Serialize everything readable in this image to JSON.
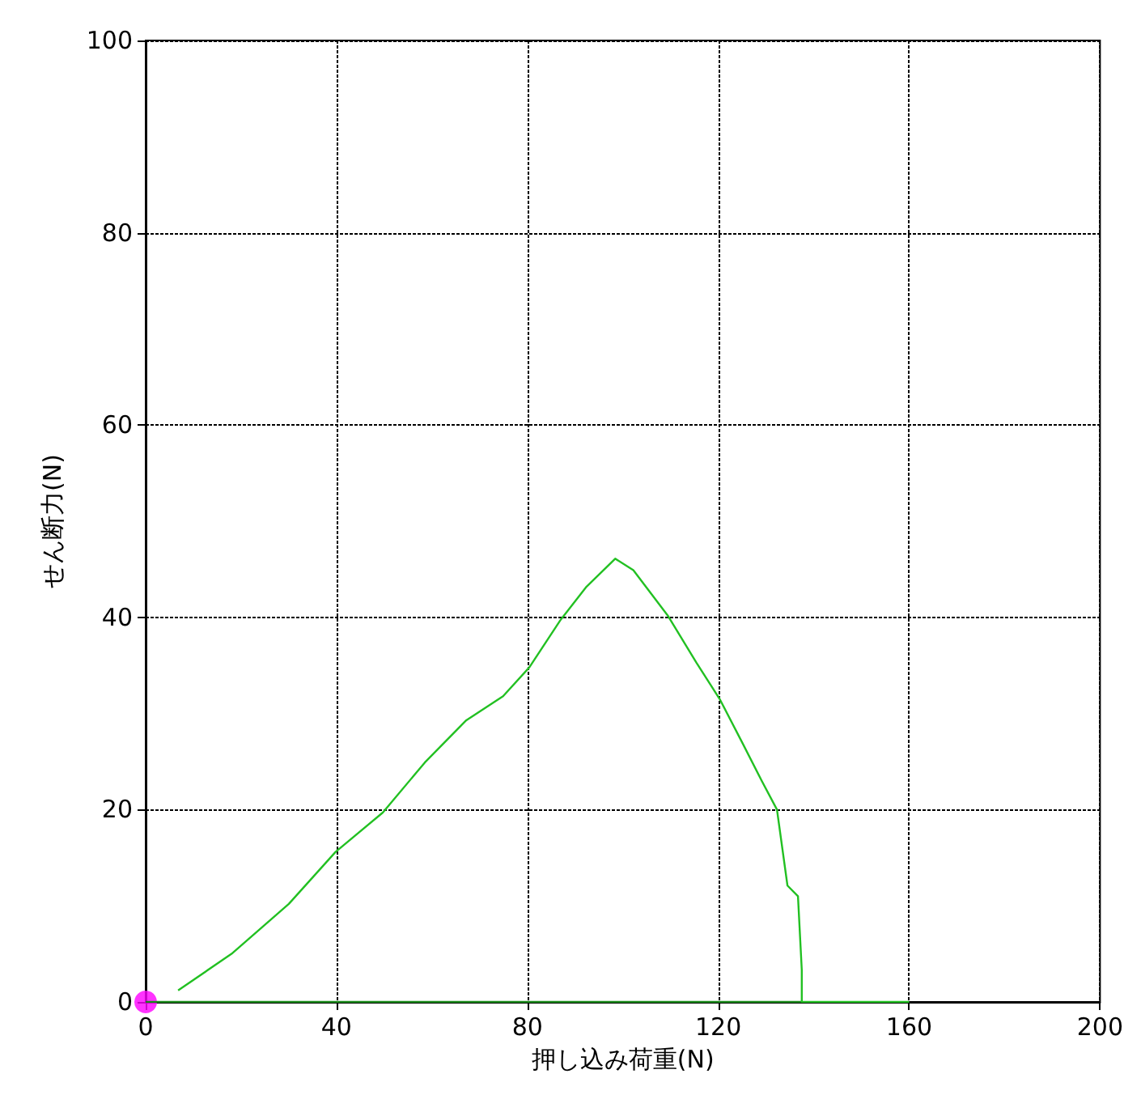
{
  "chart_data": {
    "type": "line",
    "xlabel": "押し込み荷重(N)",
    "ylabel": "せん断力(N)",
    "xlim": [
      0,
      200
    ],
    "xticks": [
      0,
      40,
      80,
      120,
      160,
      200
    ],
    "ylim": [
      0,
      100
    ],
    "yticks": [
      0,
      20,
      40,
      60,
      80,
      100
    ],
    "grid": true,
    "marker": "none",
    "line_style": "solid",
    "series": [
      {
        "color": "#1a8a1a",
        "x": [
          0,
          137.5
        ],
        "values": [
          0,
          0
        ]
      },
      {
        "color": "#22c022",
        "x": [
          6.8,
          18.0,
          30.0,
          39.8,
          49.7,
          58.5,
          67.2,
          74.9,
          80.4,
          86.9,
          92.4,
          98.4,
          102.2,
          109.4,
          115.4,
          120.3,
          125.2,
          129.1,
          132.3,
          134.5,
          136.7,
          137.5,
          137.5,
          160
        ],
        "values": [
          1.2,
          5.0,
          10.2,
          15.6,
          19.7,
          24.9,
          29.3,
          31.8,
          34.8,
          39.7,
          43.2,
          46.1,
          44.9,
          40.2,
          35.3,
          31.5,
          26.8,
          23.0,
          20.0,
          12.1,
          11.0,
          3.3,
          0,
          0
        ]
      },
      {
        "type": "scatter",
        "marker": "circle",
        "color": "#ff00ff",
        "x": [
          0
        ],
        "values": [
          0
        ]
      }
    ]
  }
}
